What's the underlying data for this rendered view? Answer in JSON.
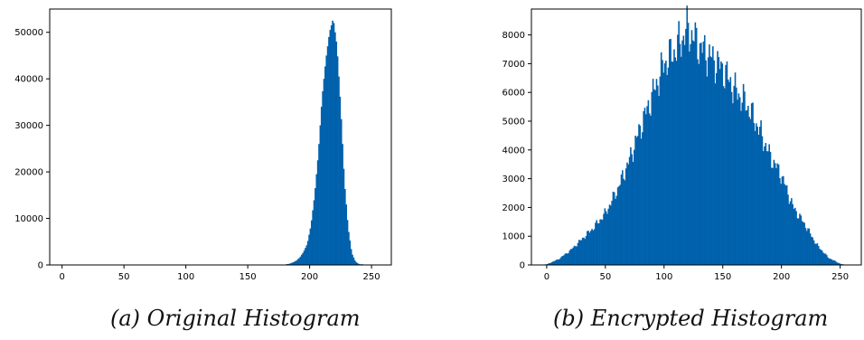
{
  "chart_data": [
    {
      "type": "bar",
      "chart_kind": "histogram",
      "caption": "(a) Original Histogram",
      "color": "#0061ac",
      "xlim": [
        -10,
        266
      ],
      "ylim": [
        0,
        55000
      ],
      "xticks": [
        0,
        50,
        100,
        150,
        200,
        250
      ],
      "yticks": [
        0,
        10000,
        20000,
        30000,
        40000,
        50000
      ],
      "grid": false,
      "x": [
        183,
        186,
        189,
        192,
        195,
        198,
        201,
        204,
        207,
        210,
        213,
        216,
        219,
        222,
        225,
        228,
        231,
        234,
        237,
        240
      ],
      "values": [
        200,
        500,
        900,
        1600,
        2800,
        4500,
        8500,
        15000,
        24000,
        36000,
        44000,
        50000,
        53000,
        47000,
        34000,
        18000,
        8000,
        2500,
        700,
        150
      ]
    },
    {
      "type": "bar",
      "chart_kind": "histogram",
      "caption": "(b) Encrypted Histogram",
      "color": "#0061ac",
      "xlim": [
        -13,
        268
      ],
      "ylim": [
        0,
        8900
      ],
      "xticks": [
        0,
        50,
        100,
        150,
        200,
        250
      ],
      "yticks": [
        0,
        1000,
        2000,
        3000,
        4000,
        5000,
        6000,
        7000,
        8000
      ],
      "grid": false,
      "x": [
        0,
        10,
        20,
        30,
        40,
        50,
        60,
        70,
        80,
        90,
        100,
        110,
        120,
        130,
        140,
        150,
        160,
        170,
        180,
        190,
        200,
        210,
        220,
        230,
        240,
        250,
        255
      ],
      "values": [
        20,
        200,
        500,
        900,
        1300,
        1800,
        2600,
        3600,
        4800,
        5900,
        7000,
        7500,
        8200,
        7600,
        7200,
        6800,
        6100,
        5600,
        4800,
        3800,
        3100,
        2000,
        1400,
        700,
        250,
        40,
        0
      ]
    }
  ]
}
